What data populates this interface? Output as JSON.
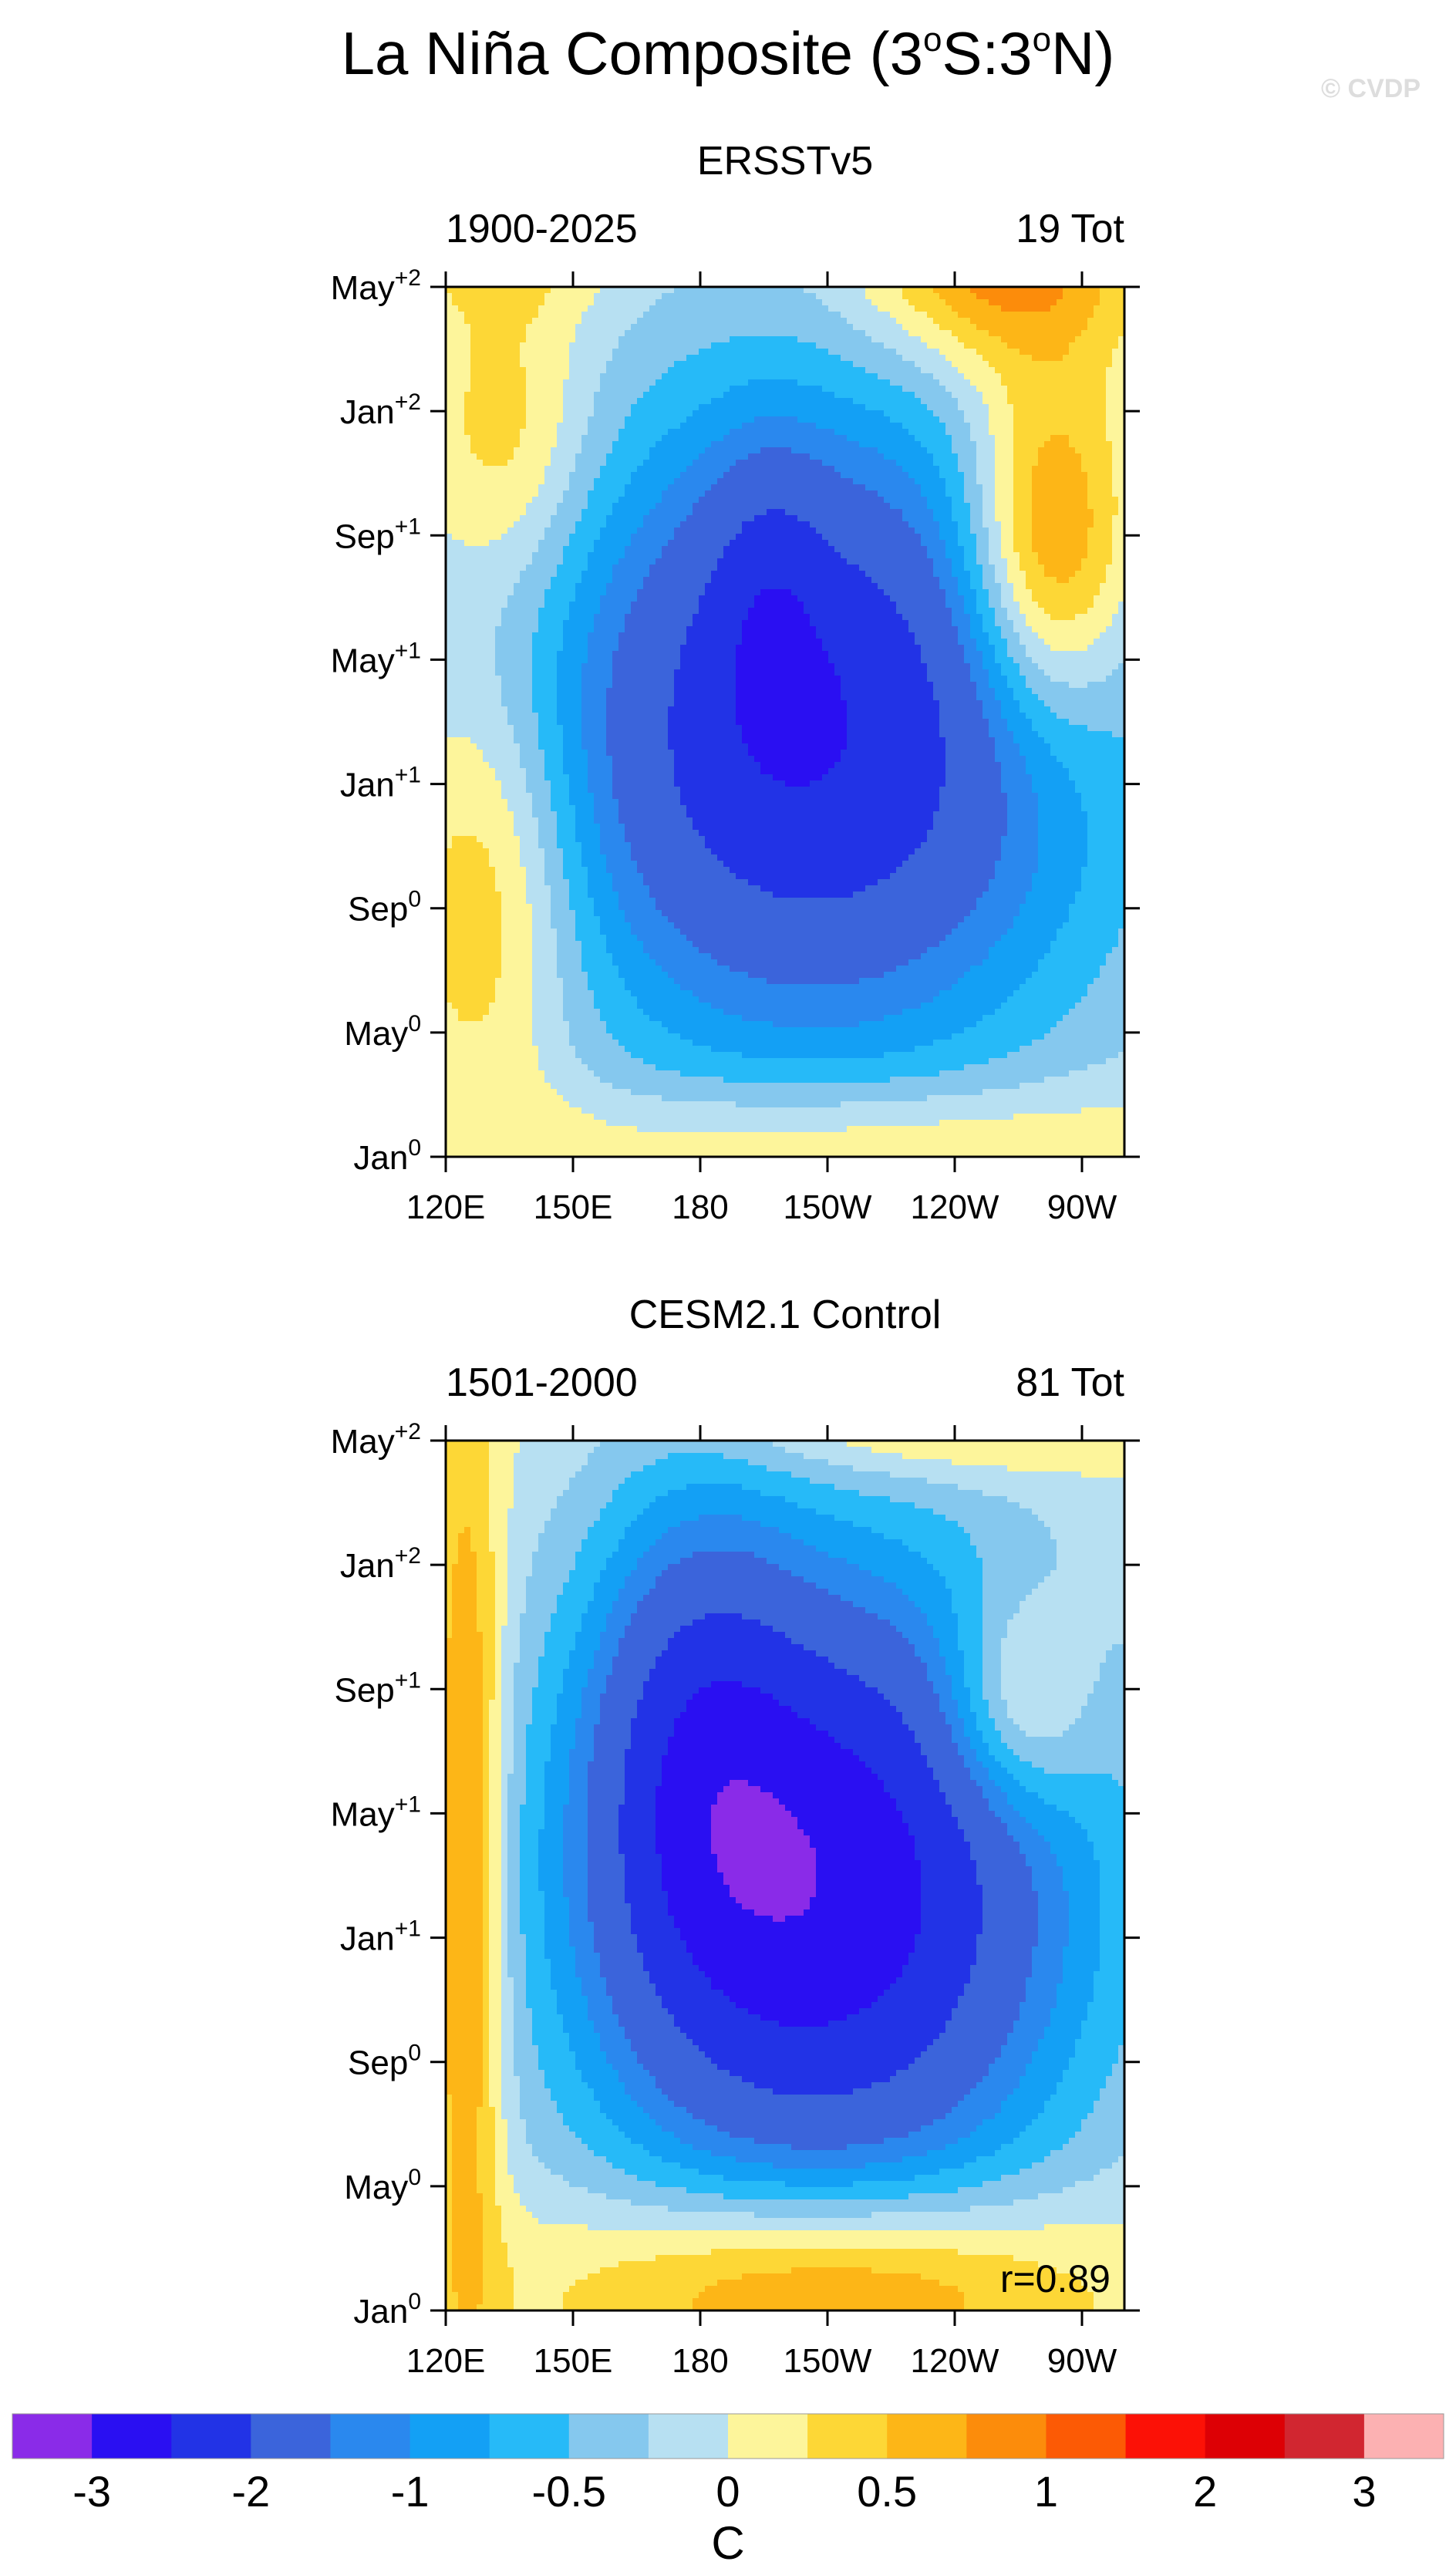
{
  "figure": {
    "title_main": "La Niña Composite (3",
    "title_deg1": "o",
    "title_mid": "S:3",
    "title_deg2": "o",
    "title_end": "N)",
    "watermark": "© CVDP",
    "colorbar_unit": "C"
  },
  "colors": {
    "levels": [
      -3.25,
      -3,
      -2.5,
      -2,
      -1.5,
      -1.25,
      -1,
      -0.75,
      -0.5,
      -0.25,
      0,
      0.25,
      0.5,
      0.75,
      1,
      1.25,
      1.5,
      2,
      2.5,
      3,
      3.25
    ],
    "fills": [
      "#8a2be8",
      "#2a0ff2",
      "#2233e6",
      "#3b64db",
      "#2a88ee",
      "#13a0f5",
      "#26baf8",
      "#85c8ee",
      "#b7e0f2",
      "#fdf59b",
      "#fdd736",
      "#fdb617",
      "#fc8c0b",
      "#fc5a05",
      "#fc1106",
      "#dd0005",
      "#d12630",
      "#fcb1b2"
    ]
  },
  "colorbar": {
    "tick_labels": [
      "-3",
      "-2",
      "-1",
      "-0.5",
      "0",
      "0.5",
      "1",
      "2",
      "3"
    ],
    "tick_after_box": [
      1,
      3,
      5,
      7,
      9,
      11,
      13,
      15,
      17
    ]
  },
  "chart_data": [
    {
      "type": "heatmap",
      "title": "ERSSTv5",
      "left_label": "1900-2025",
      "right_label": "19 Tot",
      "x_ticks": [
        "120E",
        "150E",
        "180",
        "150W",
        "120W",
        "90W"
      ],
      "x_tick_values": [
        120,
        150,
        180,
        210,
        240,
        270
      ],
      "xlim": [
        120,
        280
      ],
      "y_ticks": [
        {
          "base": "Jan",
          "sup": "0",
          "month": 0
        },
        {
          "base": "May",
          "sup": "0",
          "month": 4
        },
        {
          "base": "Sep",
          "sup": "0",
          "month": 8
        },
        {
          "base": "Jan",
          "sup": "+1",
          "month": 12
        },
        {
          "base": "May",
          "sup": "+1",
          "month": 16
        },
        {
          "base": "Sep",
          "sup": "+1",
          "month": 20
        },
        {
          "base": "Jan",
          "sup": "+2",
          "month": 24
        },
        {
          "base": "May",
          "sup": "+2",
          "month": 28
        }
      ],
      "ylim": [
        0,
        28
      ],
      "annotation": "",
      "field_components": [
        {
          "lon": 207,
          "month": 13.6,
          "slon": 48,
          "smon": 7.5,
          "amp": -2.25
        },
        {
          "lon": 196,
          "month": 18.5,
          "slon": 10,
          "smon": 3.5,
          "amp": -0.45
        },
        {
          "lon": 262,
          "month": 19.5,
          "slon": 14,
          "smon": 4,
          "amp": 1.45
        },
        {
          "lon": 250,
          "month": 29,
          "slon": 22,
          "smon": 2.5,
          "amp": 1.1
        },
        {
          "lon": 130,
          "month": 9,
          "slon": 15,
          "smon": 5,
          "amp": 0.8
        },
        {
          "lon": 135,
          "month": 23,
          "slon": 14,
          "smon": 3.5,
          "amp": 0.6
        },
        {
          "lon": 215,
          "month": 0.5,
          "slon": 55,
          "smon": 1.4,
          "amp": 0.55
        },
        {
          "lon": 135,
          "month": 29,
          "slon": 18,
          "smon": 1.5,
          "amp": 0.35
        }
      ],
      "field_bias": -0.25
    },
    {
      "type": "heatmap",
      "title": "CESM2.1 Control",
      "left_label": "1501-2000",
      "right_label": "81 Tot",
      "x_ticks": [
        "120E",
        "150E",
        "180",
        "150W",
        "120W",
        "90W"
      ],
      "x_tick_values": [
        120,
        150,
        180,
        210,
        240,
        270
      ],
      "xlim": [
        120,
        280
      ],
      "y_ticks": [
        {
          "base": "Jan",
          "sup": "0",
          "month": 0
        },
        {
          "base": "May",
          "sup": "0",
          "month": 4
        },
        {
          "base": "Sep",
          "sup": "0",
          "month": 8
        },
        {
          "base": "Jan",
          "sup": "+1",
          "month": 12
        },
        {
          "base": "May",
          "sup": "+1",
          "month": 16
        },
        {
          "base": "Sep",
          "sup": "+1",
          "month": 20
        },
        {
          "base": "Jan",
          "sup": "+2",
          "month": 24
        },
        {
          "base": "May",
          "sup": "+2",
          "month": 28
        }
      ],
      "ylim": [
        0,
        28
      ],
      "annotation": "r=0.89",
      "field_components": [
        {
          "lon": 210,
          "month": 13.5,
          "slon": 42,
          "smon": 7.5,
          "amp": -2.65
        },
        {
          "lon": 178,
          "month": 19,
          "slon": 18,
          "smon": 6,
          "amp": -0.9
        },
        {
          "lon": 255,
          "month": 19.5,
          "slon": 12,
          "smon": 2.5,
          "amp": 0.9
        },
        {
          "lon": 125,
          "month": 14,
          "slon": 6,
          "smon": 10,
          "amp": 1.05
        },
        {
          "lon": 210,
          "month": 0.8,
          "slon": 42,
          "smon": 2.2,
          "amp": 1.2
        },
        {
          "lon": 235,
          "month": 28.5,
          "slon": 35,
          "smon": 1.2,
          "amp": 0.55
        }
      ],
      "field_bias": -0.2
    }
  ]
}
